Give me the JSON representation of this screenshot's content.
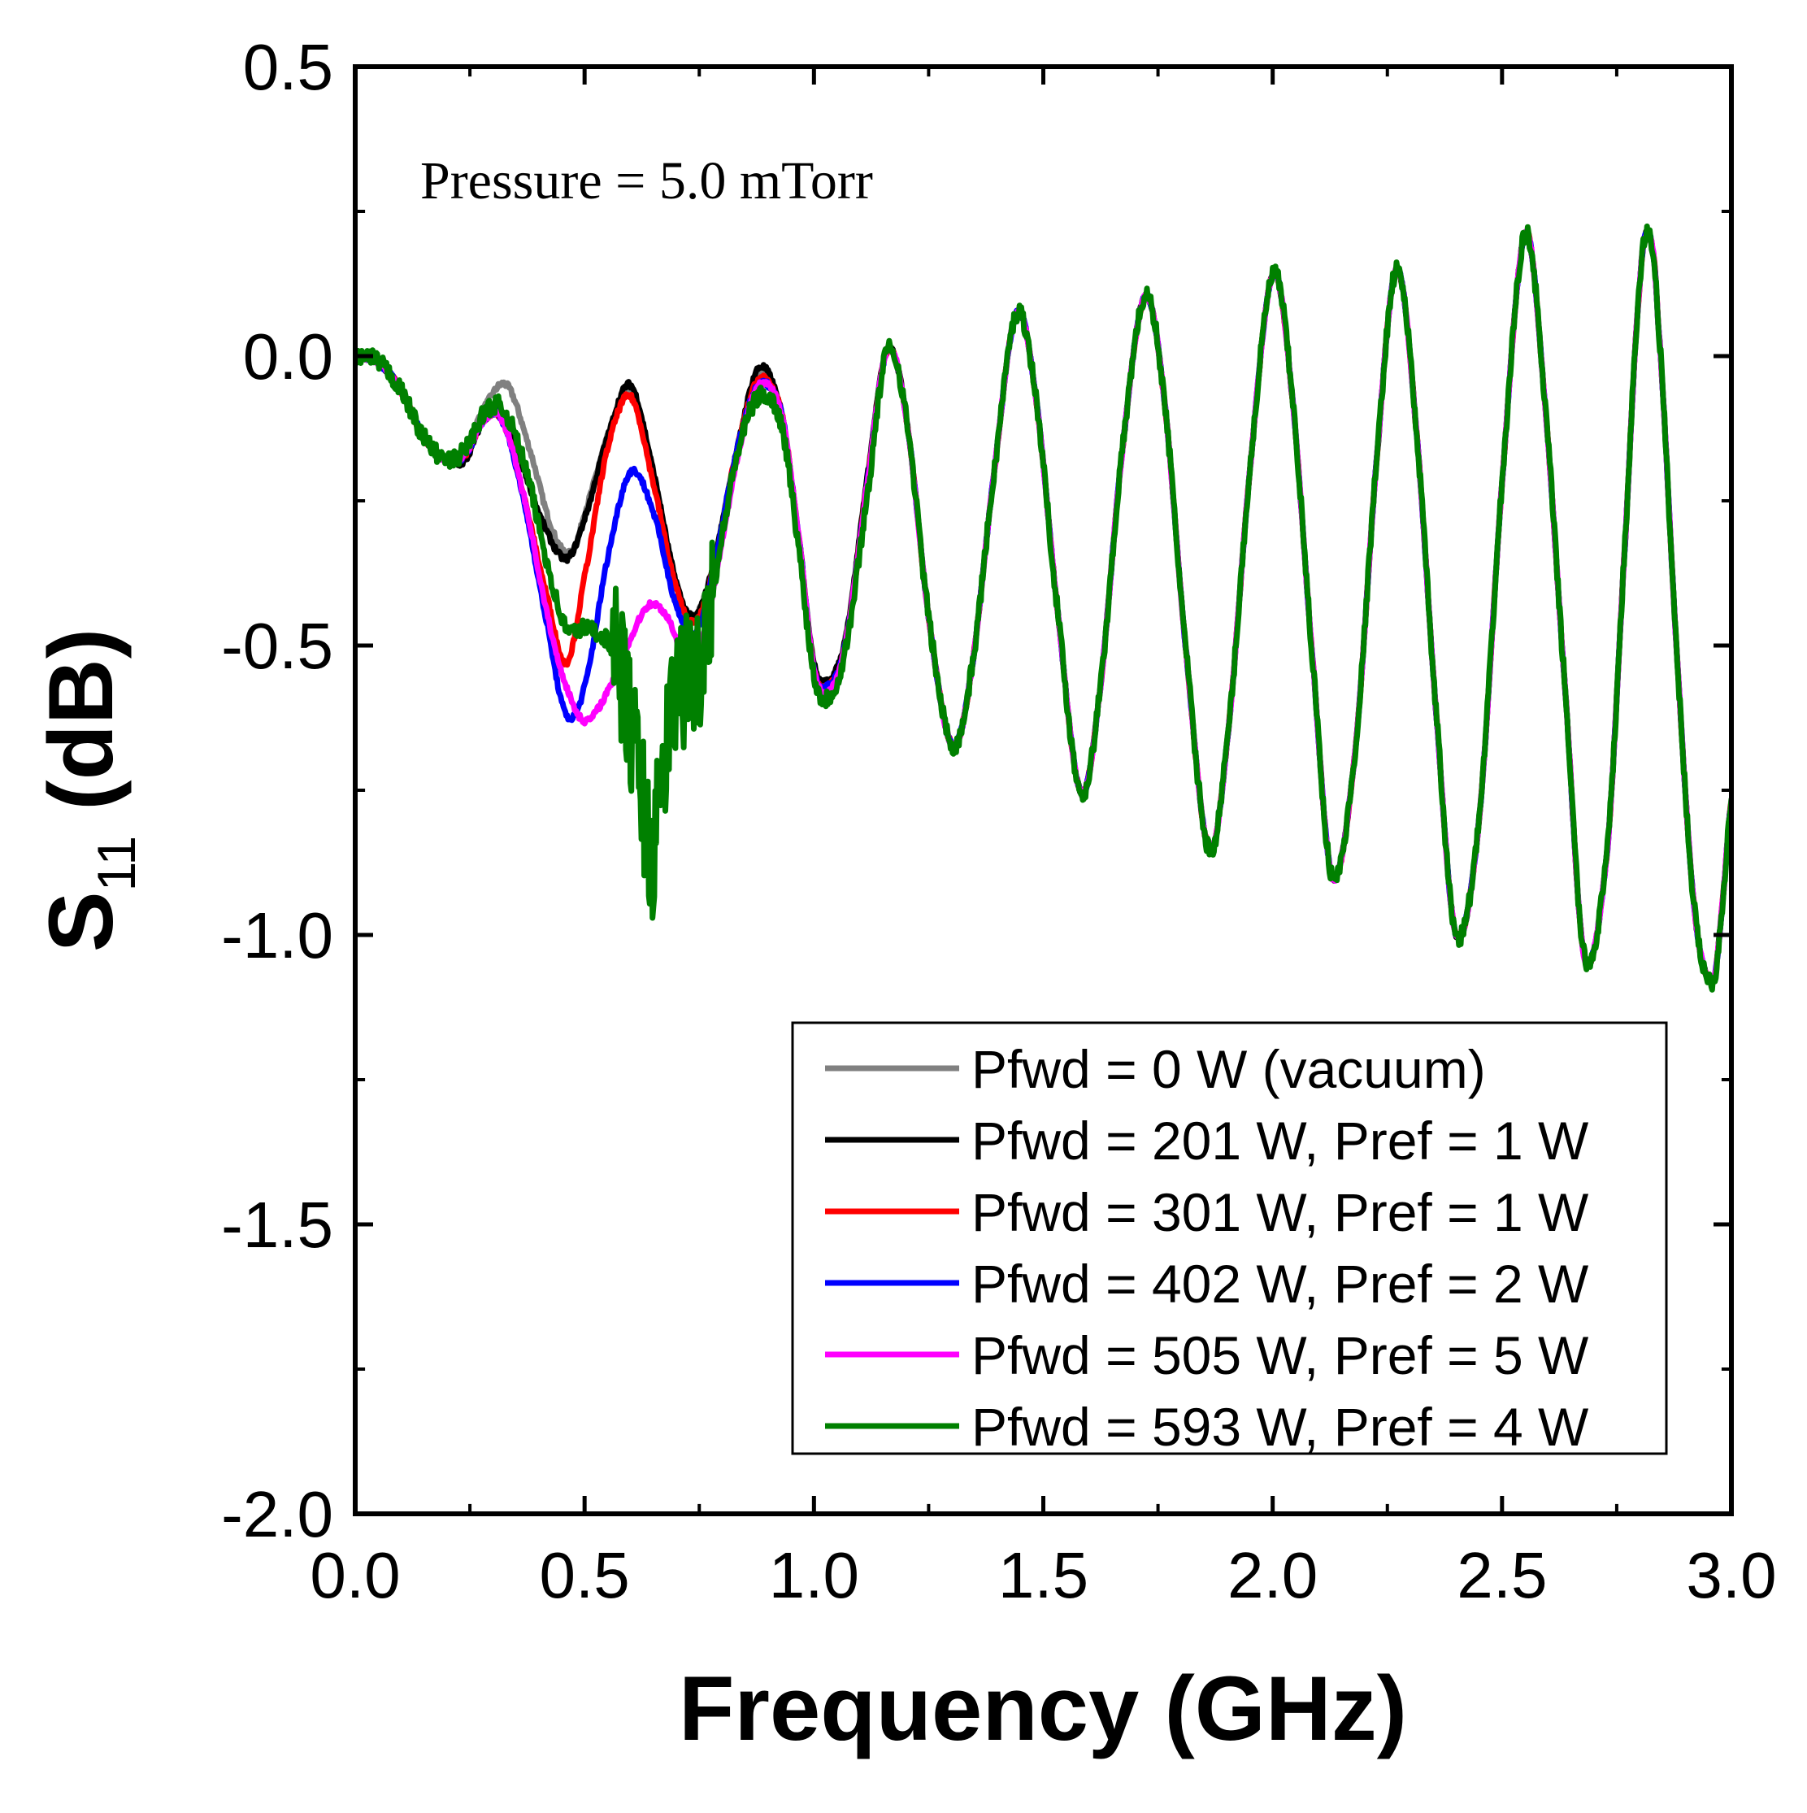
{
  "chart_data": {
    "type": "line",
    "title": "",
    "xlabel": "Frequency (GHz)",
    "ylabel": {
      "main": "S",
      "subscript": "11",
      "unit": " (dB)"
    },
    "xlim": [
      0.0,
      3.0
    ],
    "ylim": [
      -2.0,
      0.5
    ],
    "grid": false,
    "xticks": [
      0.0,
      0.5,
      1.0,
      1.5,
      2.0,
      2.5,
      3.0
    ],
    "yticks": [
      0.5,
      0.0,
      -0.5,
      -1.0,
      -1.5,
      -2.0
    ],
    "xtick_labels": [
      "0.0",
      "0.5",
      "1.0",
      "1.5",
      "2.0",
      "2.5",
      "3.0"
    ],
    "ytick_labels": [
      "0.5",
      "0.0",
      "-0.5",
      "-1.0",
      "-1.5",
      "-2.0"
    ],
    "annotation": "Pressure = 5.0 mTorr",
    "legend_position": "bottom-right",
    "series": [
      {
        "name": "Pfwd = 0 W (vacuum)",
        "color": "#808080",
        "points": [
          [
            0.0,
            0.0
          ],
          [
            0.05,
            -0.01
          ],
          [
            0.1,
            -0.06
          ],
          [
            0.15,
            -0.14
          ],
          [
            0.2,
            -0.18
          ],
          [
            0.24,
            -0.16
          ],
          [
            0.28,
            -0.09
          ],
          [
            0.33,
            -0.05
          ],
          [
            0.38,
            -0.16
          ],
          [
            0.43,
            -0.3
          ],
          [
            0.47,
            -0.34
          ],
          [
            0.5,
            -0.27
          ],
          [
            0.55,
            -0.14
          ],
          [
            0.6,
            -0.06
          ],
          [
            0.65,
            -0.2
          ],
          [
            0.7,
            -0.4
          ],
          [
            0.74,
            -0.45
          ],
          [
            0.78,
            -0.36
          ],
          [
            0.83,
            -0.17
          ],
          [
            0.88,
            -0.03
          ],
          [
            0.93,
            -0.1
          ],
          [
            0.97,
            -0.33
          ],
          [
            1.0,
            -0.53
          ],
          [
            1.03,
            -0.57
          ],
          [
            1.07,
            -0.48
          ],
          [
            1.12,
            -0.19
          ],
          [
            1.16,
            0.0
          ]
        ]
      },
      {
        "name": "Pfwd = 201 W, Pref = 1 W",
        "color": "#000000",
        "points": [
          [
            0.0,
            0.0
          ],
          [
            0.05,
            -0.01
          ],
          [
            0.1,
            -0.06
          ],
          [
            0.15,
            -0.14
          ],
          [
            0.2,
            -0.18
          ],
          [
            0.24,
            -0.18
          ],
          [
            0.28,
            -0.11
          ],
          [
            0.32,
            -0.1
          ],
          [
            0.36,
            -0.18
          ],
          [
            0.41,
            -0.29
          ],
          [
            0.46,
            -0.35
          ],
          [
            0.5,
            -0.28
          ],
          [
            0.55,
            -0.14
          ],
          [
            0.6,
            -0.05
          ],
          [
            0.65,
            -0.2
          ],
          [
            0.7,
            -0.39
          ],
          [
            0.74,
            -0.45
          ],
          [
            0.78,
            -0.36
          ],
          [
            0.83,
            -0.17
          ],
          [
            0.88,
            -0.02
          ],
          [
            0.93,
            -0.1
          ],
          [
            0.97,
            -0.33
          ],
          [
            1.0,
            -0.53
          ],
          [
            1.03,
            -0.56
          ],
          [
            1.07,
            -0.48
          ],
          [
            1.12,
            -0.19
          ],
          [
            1.16,
            0.01
          ]
        ]
      },
      {
        "name": "Pfwd = 301 W, Pref = 1 W",
        "color": "#ff0000",
        "points": [
          [
            0.0,
            0.0
          ],
          [
            0.05,
            -0.01
          ],
          [
            0.1,
            -0.06
          ],
          [
            0.15,
            -0.14
          ],
          [
            0.2,
            -0.18
          ],
          [
            0.24,
            -0.17
          ],
          [
            0.28,
            -0.11
          ],
          [
            0.32,
            -0.11
          ],
          [
            0.37,
            -0.25
          ],
          [
            0.42,
            -0.42
          ],
          [
            0.46,
            -0.53
          ],
          [
            0.5,
            -0.38
          ],
          [
            0.55,
            -0.16
          ],
          [
            0.6,
            -0.07
          ],
          [
            0.65,
            -0.22
          ],
          [
            0.7,
            -0.4
          ],
          [
            0.74,
            -0.46
          ],
          [
            0.78,
            -0.37
          ],
          [
            0.83,
            -0.17
          ],
          [
            0.88,
            -0.04
          ],
          [
            0.93,
            -0.1
          ],
          [
            0.97,
            -0.33
          ],
          [
            1.0,
            -0.54
          ],
          [
            1.03,
            -0.57
          ],
          [
            1.07,
            -0.49
          ],
          [
            1.12,
            -0.2
          ],
          [
            1.16,
            0.0
          ]
        ]
      },
      {
        "name": "Pfwd = 402 W, Pref = 2 W",
        "color": "#0000ff",
        "points": [
          [
            0.0,
            0.0
          ],
          [
            0.05,
            -0.01
          ],
          [
            0.1,
            -0.06
          ],
          [
            0.15,
            -0.14
          ],
          [
            0.2,
            -0.18
          ],
          [
            0.24,
            -0.17
          ],
          [
            0.28,
            -0.11
          ],
          [
            0.32,
            -0.11
          ],
          [
            0.37,
            -0.26
          ],
          [
            0.42,
            -0.47
          ],
          [
            0.46,
            -0.62
          ],
          [
            0.5,
            -0.57
          ],
          [
            0.55,
            -0.35
          ],
          [
            0.6,
            -0.2
          ],
          [
            0.65,
            -0.27
          ],
          [
            0.7,
            -0.43
          ],
          [
            0.74,
            -0.48
          ],
          [
            0.78,
            -0.37
          ],
          [
            0.83,
            -0.17
          ],
          [
            0.88,
            -0.05
          ],
          [
            0.93,
            -0.1
          ],
          [
            0.97,
            -0.33
          ],
          [
            1.0,
            -0.54
          ],
          [
            1.03,
            -0.57
          ],
          [
            1.07,
            -0.49
          ],
          [
            1.12,
            -0.2
          ],
          [
            1.16,
            0.0
          ]
        ]
      },
      {
        "name": "Pfwd = 505 W, Pref = 5 W",
        "color": "#ff00ff",
        "points": [
          [
            0.0,
            0.0
          ],
          [
            0.05,
            -0.01
          ],
          [
            0.1,
            -0.06
          ],
          [
            0.15,
            -0.14
          ],
          [
            0.2,
            -0.18
          ],
          [
            0.24,
            -0.17
          ],
          [
            0.28,
            -0.11
          ],
          [
            0.32,
            -0.11
          ],
          [
            0.37,
            -0.25
          ],
          [
            0.42,
            -0.45
          ],
          [
            0.46,
            -0.57
          ],
          [
            0.5,
            -0.63
          ],
          [
            0.55,
            -0.58
          ],
          [
            0.6,
            -0.49
          ],
          [
            0.64,
            -0.43
          ],
          [
            0.68,
            -0.45
          ],
          [
            0.72,
            -0.52
          ],
          [
            0.76,
            -0.48
          ],
          [
            0.8,
            -0.32
          ],
          [
            0.84,
            -0.15
          ],
          [
            0.88,
            -0.05
          ],
          [
            0.93,
            -0.1
          ],
          [
            0.97,
            -0.33
          ],
          [
            1.0,
            -0.54
          ],
          [
            1.03,
            -0.58
          ],
          [
            1.07,
            -0.49
          ],
          [
            1.12,
            -0.2
          ],
          [
            1.16,
            0.0
          ]
        ]
      },
      {
        "name": "Pfwd = 593 W, Pref = 4 W",
        "color": "#008000",
        "points": [
          [
            0.0,
            0.0
          ],
          [
            0.05,
            -0.01
          ],
          [
            0.1,
            -0.06
          ],
          [
            0.15,
            -0.14
          ],
          [
            0.2,
            -0.18
          ],
          [
            0.24,
            -0.16
          ],
          [
            0.28,
            -0.1
          ],
          [
            0.32,
            -0.09
          ],
          [
            0.37,
            -0.19
          ],
          [
            0.42,
            -0.36
          ],
          [
            0.46,
            -0.47
          ],
          [
            0.5,
            -0.47
          ],
          [
            0.55,
            -0.49
          ],
          [
            0.58,
            -0.55
          ],
          [
            0.61,
            -0.68
          ],
          [
            0.63,
            -0.78
          ],
          [
            0.65,
            -0.86
          ],
          [
            0.67,
            -0.72
          ],
          [
            0.69,
            -0.62
          ],
          [
            0.71,
            -0.57
          ],
          [
            0.74,
            -0.55
          ],
          [
            0.78,
            -0.4
          ],
          [
            0.83,
            -0.18
          ],
          [
            0.88,
            -0.07
          ],
          [
            0.93,
            -0.12
          ],
          [
            0.97,
            -0.35
          ],
          [
            1.0,
            -0.55
          ],
          [
            1.03,
            -0.59
          ],
          [
            1.07,
            -0.5
          ],
          [
            1.12,
            -0.22
          ],
          [
            1.16,
            -0.03
          ]
        ]
      }
    ],
    "common_trace": {
      "applies_to": "all series",
      "points": [
        [
          1.16,
          0.01
        ],
        [
          1.2,
          -0.1
        ],
        [
          1.25,
          -0.45
        ],
        [
          1.3,
          -0.67
        ],
        [
          1.34,
          -0.56
        ],
        [
          1.39,
          -0.22
        ],
        [
          1.44,
          0.07
        ],
        [
          1.48,
          -0.05
        ],
        [
          1.53,
          -0.43
        ],
        [
          1.58,
          -0.75
        ],
        [
          1.62,
          -0.6
        ],
        [
          1.67,
          -0.18
        ],
        [
          1.72,
          0.1
        ],
        [
          1.76,
          -0.05
        ],
        [
          1.81,
          -0.5
        ],
        [
          1.86,
          -0.85
        ],
        [
          1.9,
          -0.67
        ],
        [
          1.95,
          -0.2
        ],
        [
          2.0,
          0.14
        ],
        [
          2.04,
          -0.05
        ],
        [
          2.09,
          -0.55
        ],
        [
          2.13,
          -0.9
        ],
        [
          2.18,
          -0.68
        ],
        [
          2.23,
          -0.15
        ],
        [
          2.27,
          0.15
        ],
        [
          2.31,
          -0.1
        ],
        [
          2.36,
          -0.65
        ],
        [
          2.4,
          -1.0
        ],
        [
          2.45,
          -0.8
        ],
        [
          2.5,
          -0.22
        ],
        [
          2.55,
          0.21
        ],
        [
          2.59,
          -0.05
        ],
        [
          2.64,
          -0.6
        ],
        [
          2.68,
          -1.04
        ],
        [
          2.73,
          -0.85
        ],
        [
          2.77,
          -0.3
        ],
        [
          2.8,
          0.12
        ],
        [
          2.82,
          0.21
        ],
        [
          2.84,
          0.06
        ],
        [
          2.88,
          -0.5
        ],
        [
          2.92,
          -0.96
        ],
        [
          2.96,
          -1.08
        ],
        [
          2.98,
          -0.95
        ],
        [
          3.0,
          -0.77
        ]
      ]
    },
    "noise_amplitude": 0.005
  }
}
